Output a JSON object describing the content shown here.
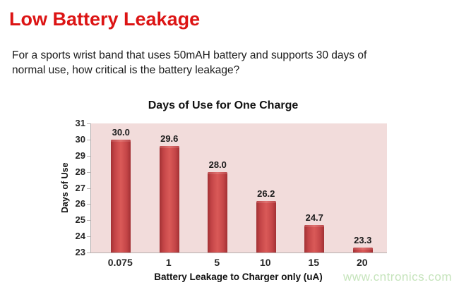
{
  "slide": {
    "title": "Low Battery Leakage",
    "body_lines": [
      "For a sports wrist band that uses 50mAH battery and supports 30 days of",
      "normal use, how critical is the battery leakage?"
    ],
    "watermark": "www.cntronics.com"
  },
  "chart_data": {
    "type": "bar",
    "title": "Days of Use for One Charge",
    "categories": [
      "0.075",
      "1",
      "5",
      "10",
      "15",
      "20"
    ],
    "values": [
      30.0,
      29.6,
      28.0,
      26.2,
      24.7,
      23.3
    ],
    "value_labels": [
      "30.0",
      "29.6",
      "28.0",
      "26.2",
      "24.7",
      "23.3"
    ],
    "xlabel": "Battery Leakage to Charger only (uA)",
    "ylabel": "Days of Use",
    "ylim": [
      23,
      31
    ],
    "ytick_step": 1,
    "yticks": [
      31,
      30,
      29,
      28,
      27,
      26,
      25,
      24,
      23
    ],
    "grid": false,
    "legend": "none"
  },
  "colors": {
    "title_red": "#dc1414",
    "body_text": "#1a1a1a",
    "bar_fill": "#c44547",
    "plot_bg": "#f2dcdb",
    "axis_line": "#b5afaf",
    "watermark_green": "#c5e4bb"
  }
}
